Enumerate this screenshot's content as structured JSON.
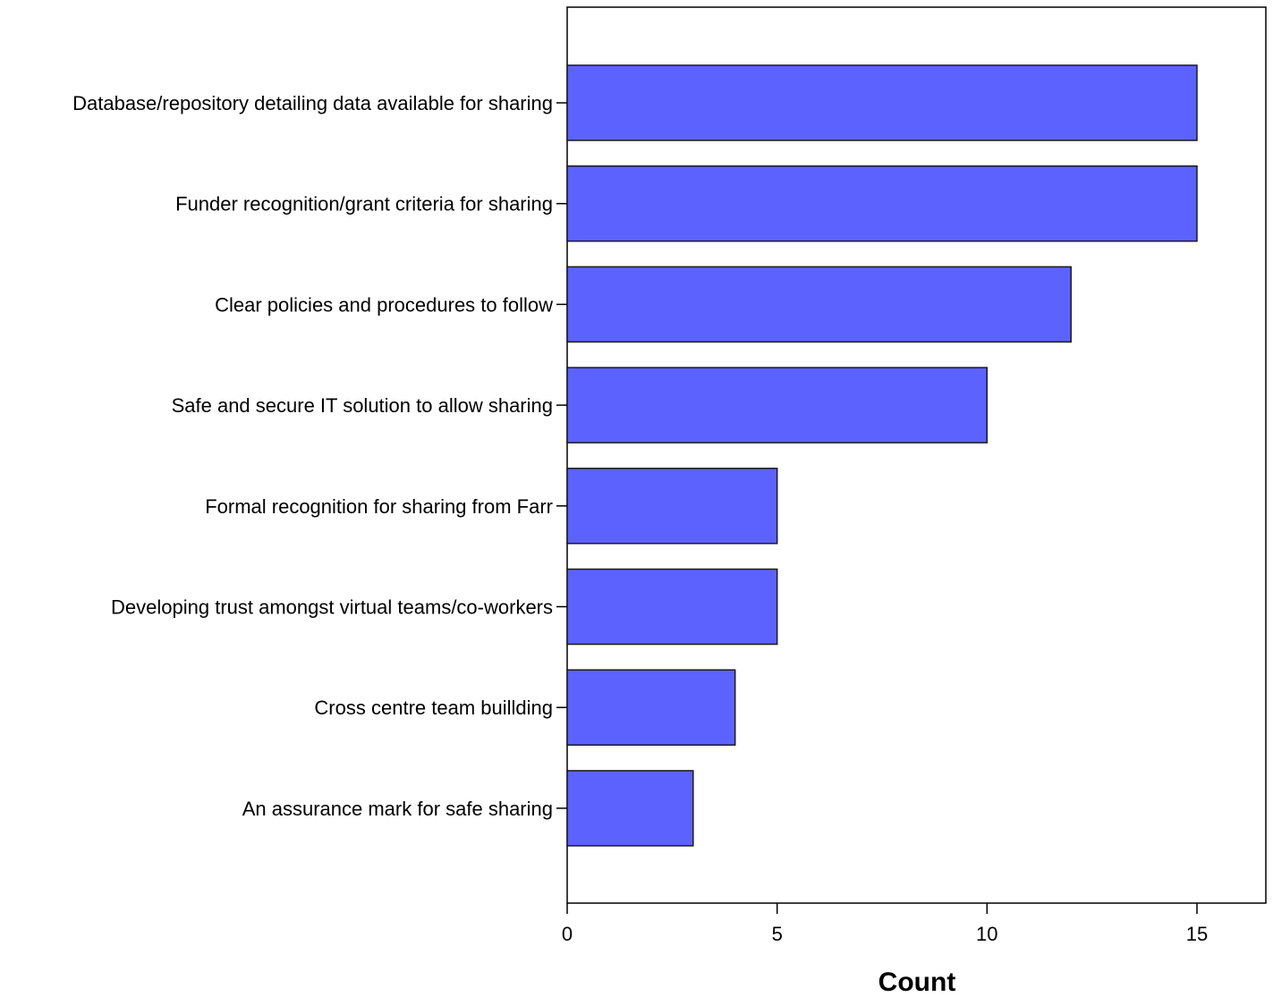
{
  "chart_data": {
    "type": "bar",
    "orientation": "horizontal",
    "title": "",
    "xlabel": "Count",
    "ylabel": "",
    "xlim": [
      0,
      16.66
    ],
    "xticks": [
      0,
      5,
      10,
      15
    ],
    "grid": false,
    "legend": "none",
    "categories": [
      "Database/repository detailing data available for sharing",
      "Funder recognition/grant criteria for sharing",
      "Clear policies and procedures to follow",
      "Safe and secure IT solution to allow sharing",
      "Formal recognition for sharing from Farr",
      "Developing trust amongst virtual teams/co-workers",
      "Cross centre team buillding",
      "An assurance mark for safe sharing"
    ],
    "values": [
      15,
      15,
      12,
      10,
      5,
      5,
      4,
      3
    ],
    "colors": {
      "bar_fill": "#5c62fe",
      "bar_stroke": "#1a1a1a",
      "axis": "#000000",
      "background": "#ffffff"
    }
  }
}
